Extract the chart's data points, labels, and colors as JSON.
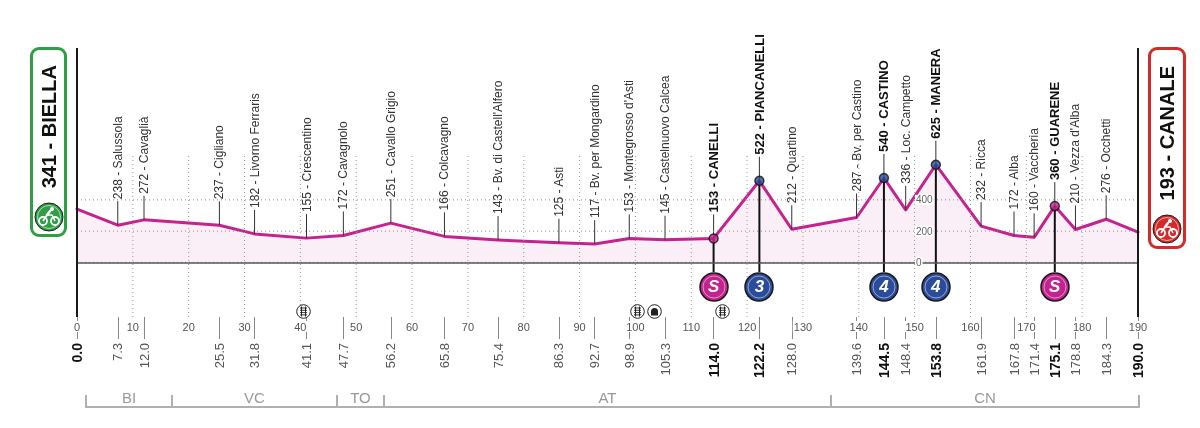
{
  "chart_data": {
    "type": "area",
    "series": [
      {
        "color": "#c4238f",
        "x": [
          0,
          7.3,
          12,
          25.5,
          31.8,
          41.1,
          47.7,
          56.2,
          65.8,
          75.4,
          86.3,
          92.7,
          98.9,
          105.3,
          114,
          122.2,
          128,
          139.6,
          144.5,
          148.4,
          153.8,
          161.9,
          167.8,
          171.4,
          175.1,
          178.8,
          184.3,
          190
        ],
        "values": [
          341,
          238,
          272,
          237,
          182,
          155,
          172,
          251,
          166,
          143,
          125,
          117,
          153,
          145,
          153,
          522,
          212,
          287,
          540,
          336,
          625,
          232,
          172,
          160,
          360,
          210,
          276,
          193
        ],
        "value_labels": [
          "341 - BIELLA",
          "238 - Salussola",
          "272 - Cavaglià",
          "237 - Cigliano",
          "182 - Livorno Ferraris",
          "155 - Crescentino",
          "172 - Cavagnolo",
          "251 - Cavallo Grigio",
          "166 - Colcavagno",
          "143 - Bv. di Castell'Alfero",
          "125 - Asti",
          "117 - Bv. per Mongardino",
          "153 - Montegrosso d'Asti",
          "145 - Castelnuovo Calcea",
          "153 - CANELLI",
          "522 - PIANCANELLI",
          "212 - Quartino",
          "287 - Bv. per Castino",
          "540 - CASTINO",
          "336 - Loc. Campetto",
          "625 - MANERA",
          "232 - Ricca",
          "172 - Alba",
          "160 - Vaccheria",
          "360 - GUARENE",
          "210 - Vezza d'Alba",
          "276 - Occhetti",
          "193 - CANALE"
        ]
      },
      {
        "type": "scatter",
        "color": "#c2238f",
        "x": [
          114,
          175.1
        ],
        "values": [
          153,
          360
        ]
      },
      {
        "type": "scatter",
        "color": "#2b4c9b",
        "x": [
          122.2,
          144.5,
          153.8
        ],
        "values": [
          522,
          540,
          625
        ]
      }
    ],
    "xlim": [
      0,
      190
    ],
    "xticks": [
      0,
      10,
      20,
      30,
      40,
      50,
      60,
      70,
      80,
      90,
      100,
      110,
      120,
      130,
      140,
      150,
      160,
      170,
      180,
      190
    ],
    "x2lim": [
      0,
      190
    ],
    "x2ticks": [
      {
        "value": 0,
        "label": "0.0"
      },
      7.3,
      {
        "value": 12,
        "label": "12.0"
      },
      25.5,
      31.8,
      41.1,
      47.7,
      56.2,
      65.8,
      75.4,
      86.3,
      92.7,
      98.9,
      105.3,
      {
        "value": 114,
        "label": "114.0"
      },
      122.2,
      {
        "value": 128,
        "label": "128.0"
      },
      139.6,
      144.5,
      148.4,
      153.8,
      161.9,
      167.8,
      171.4,
      175.1,
      178.8,
      184.3,
      {
        "value": 190,
        "label": "190.0"
      }
    ],
    "ylim": [
      -350,
      700
    ],
    "yticks": [
      0,
      200,
      400
    ],
    "grid": true,
    "ref_lines": [
      {
        "axis": "x",
        "value": 0,
        "color": "#1a1a1a"
      },
      {
        "axis": "x",
        "value": 190,
        "color": "#1a1a1a"
      }
    ],
    "annotations": [
      {
        "text": "S",
        "x": 114,
        "y": 153
      },
      {
        "text": "3",
        "x": 122.2,
        "y": 522
      },
      {
        "text": "4",
        "x": 144.5,
        "y": 540
      },
      {
        "text": "4",
        "x": 153.8,
        "y": 625
      },
      {
        "text": "S",
        "x": 175.1,
        "y": 360
      },
      "BI",
      "VC",
      "TO",
      "AT",
      "CN"
    ]
  }
}
